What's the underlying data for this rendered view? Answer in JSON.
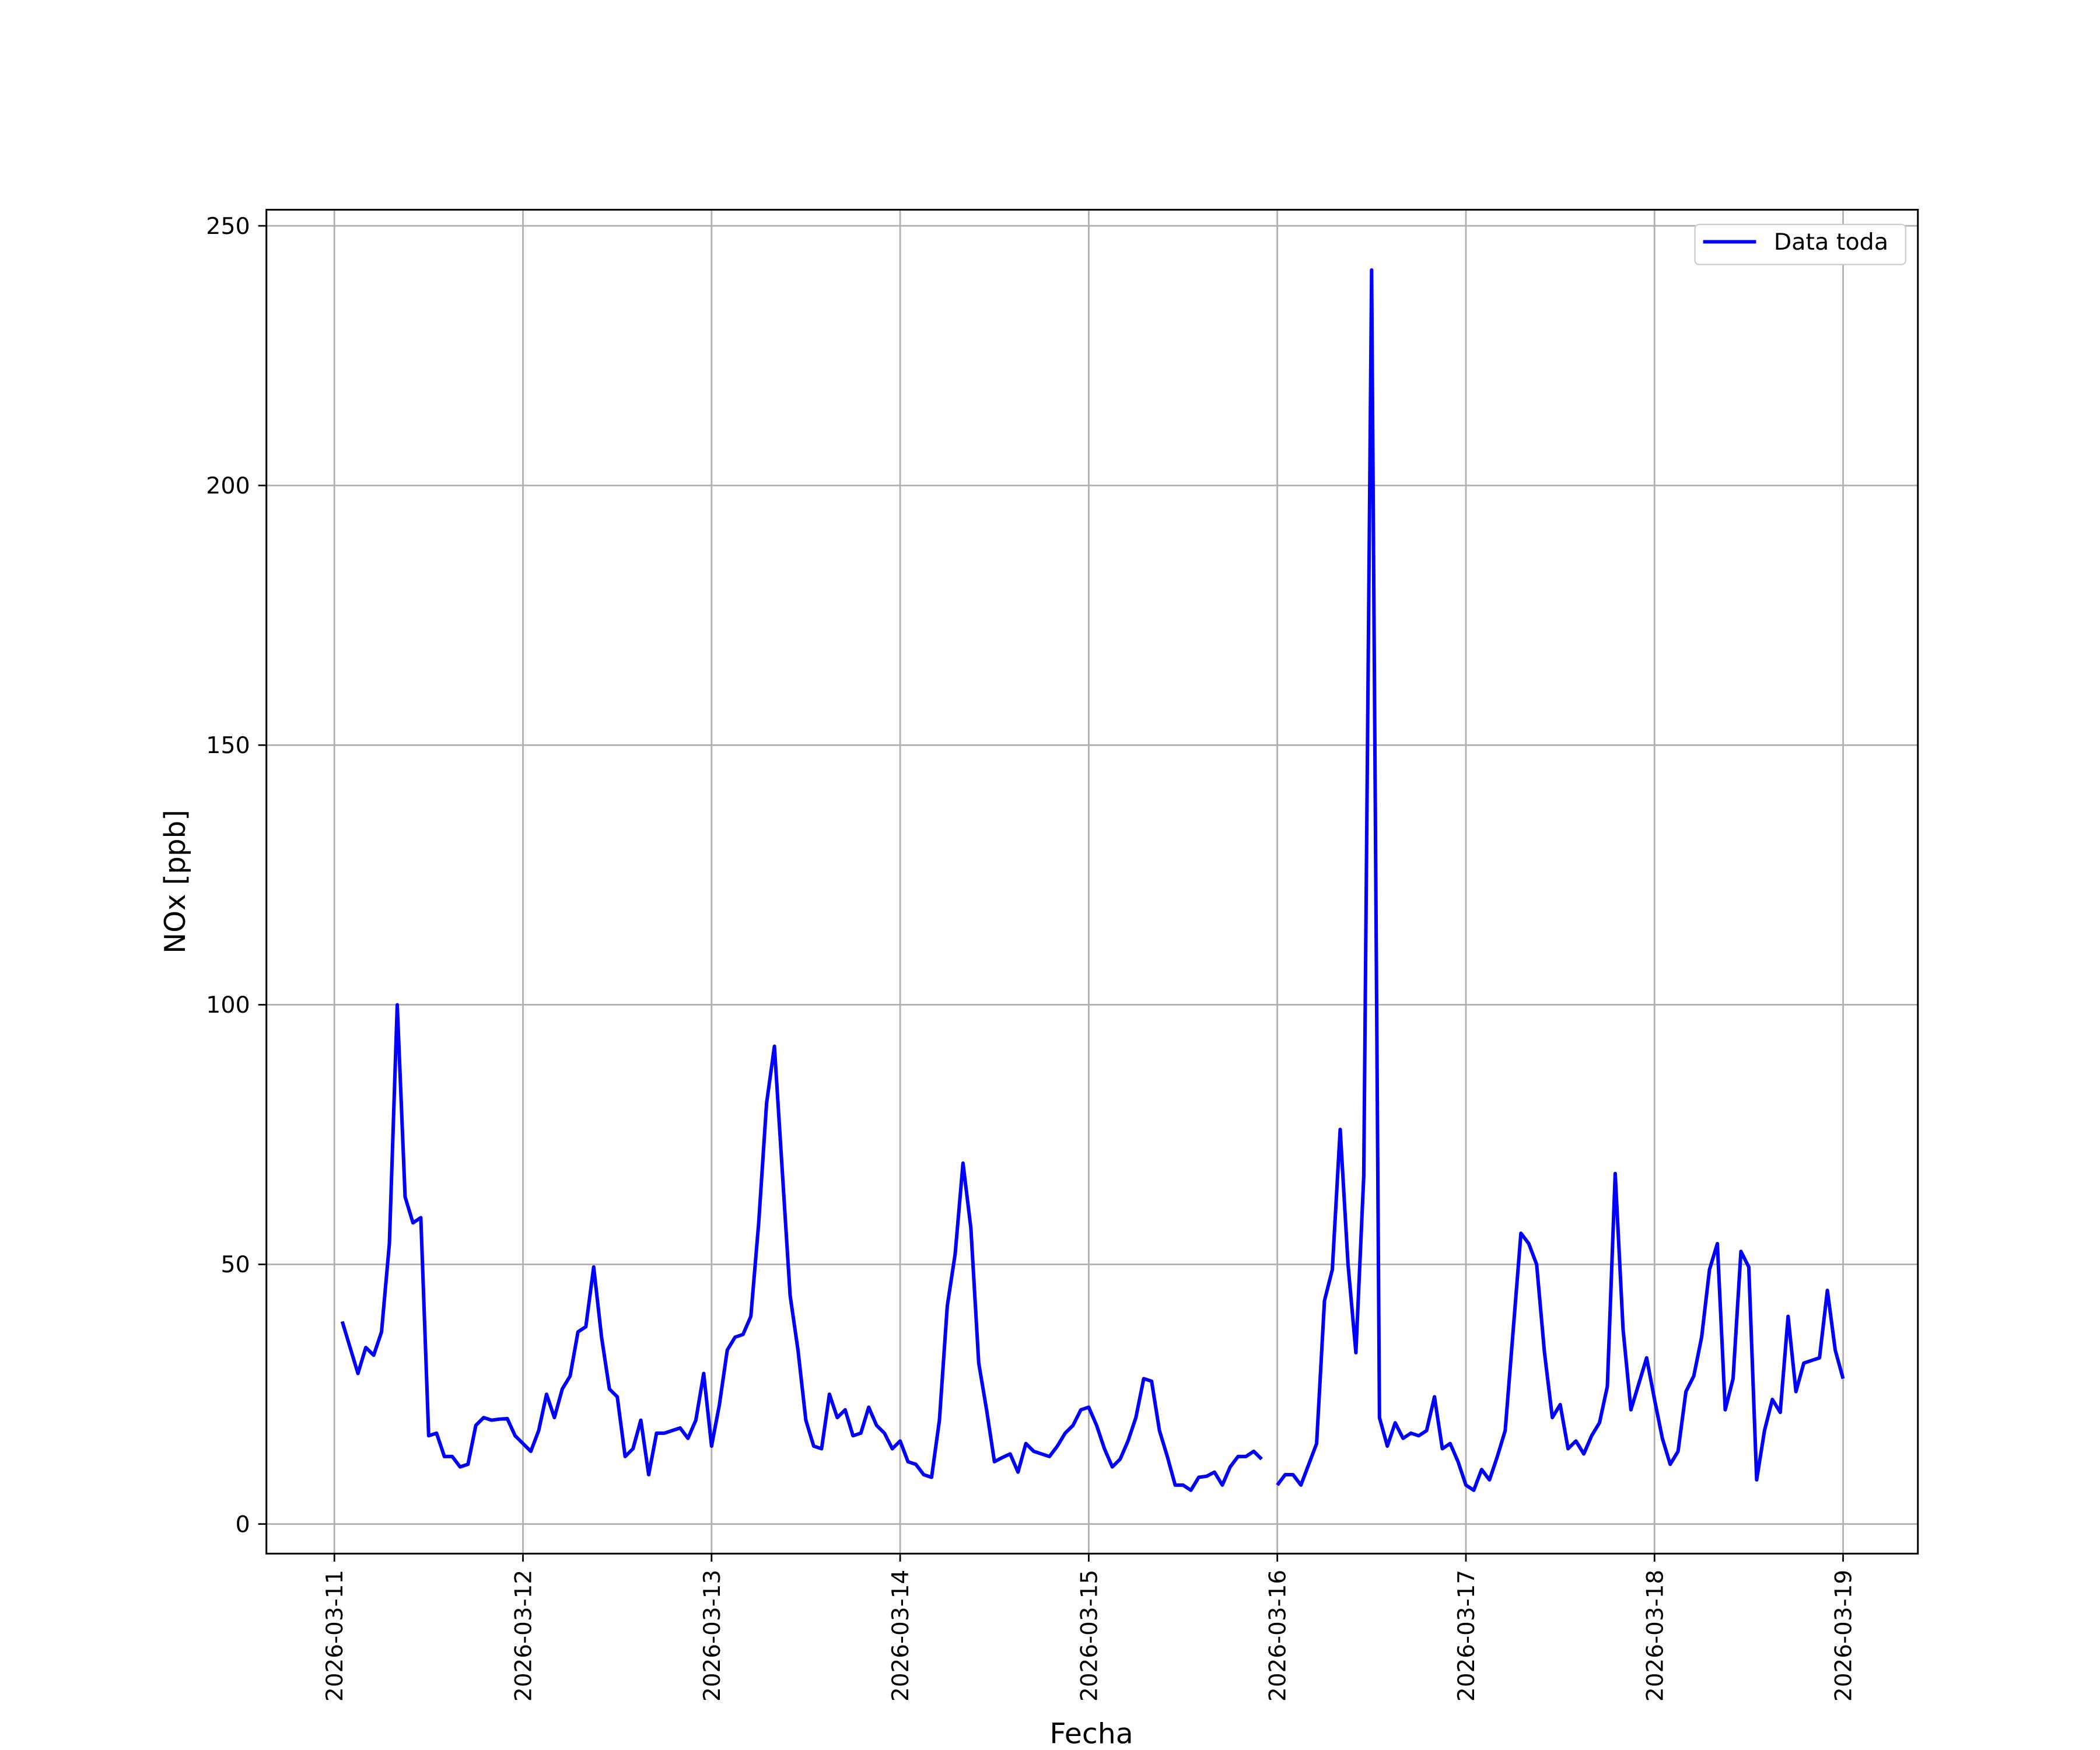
{
  "chart_data": {
    "type": "line",
    "x_label": "Fecha",
    "y_label": "NOx [ppb]",
    "xlim": [
      "2026-03-10 15:21",
      "2026-03-19 09:31"
    ],
    "ylim": [
      -5.7,
      253.1
    ],
    "xticks": [
      "2026-03-11",
      "2026-03-12",
      "2026-03-13",
      "2026-03-14",
      "2026-03-15",
      "2026-03-16",
      "2026-03-17",
      "2026-03-18",
      "2026-03-19"
    ],
    "yticks": [
      0,
      50,
      100,
      150,
      200,
      250
    ],
    "grid": true,
    "legend": "upper right",
    "x": [
      "2026-03-11 01:00",
      "2026-03-11 02:00",
      "2026-03-11 03:00",
      "2026-03-11 04:00",
      "2026-03-11 05:00",
      "2026-03-11 06:00",
      "2026-03-11 07:00",
      "2026-03-11 08:00",
      "2026-03-11 09:00",
      "2026-03-11 10:00",
      "2026-03-11 11:00",
      "2026-03-11 12:00",
      "2026-03-11 13:00",
      "2026-03-11 14:00",
      "2026-03-11 15:00",
      "2026-03-11 16:00",
      "2026-03-11 17:00",
      "2026-03-11 18:00",
      "2026-03-11 19:00",
      "2026-03-11 20:00",
      "2026-03-11 21:00",
      "2026-03-11 22:00",
      "2026-03-11 23:00",
      "2026-03-12 00:00",
      "2026-03-12 01:00",
      "2026-03-12 02:00",
      "2026-03-12 03:00",
      "2026-03-12 04:00",
      "2026-03-12 05:00",
      "2026-03-12 06:00",
      "2026-03-12 07:00",
      "2026-03-12 08:00",
      "2026-03-12 09:00",
      "2026-03-12 10:00",
      "2026-03-12 11:00",
      "2026-03-12 12:00",
      "2026-03-12 13:00",
      "2026-03-12 14:00",
      "2026-03-12 15:00",
      "2026-03-12 16:00",
      "2026-03-12 17:00",
      "2026-03-12 18:00",
      "2026-03-12 19:00",
      "2026-03-12 20:00",
      "2026-03-12 21:00",
      "2026-03-12 22:00",
      "2026-03-12 23:00",
      "2026-03-13 00:00",
      "2026-03-13 01:00",
      "2026-03-13 02:00",
      "2026-03-13 03:00",
      "2026-03-13 04:00",
      "2026-03-13 05:00",
      "2026-03-13 06:00",
      "2026-03-13 07:00",
      "2026-03-13 08:00",
      "2026-03-13 09:00",
      "2026-03-13 10:00",
      "2026-03-13 11:00",
      "2026-03-13 12:00",
      "2026-03-13 13:00",
      "2026-03-13 14:00",
      "2026-03-13 15:00",
      "2026-03-13 16:00",
      "2026-03-13 17:00",
      "2026-03-13 18:00",
      "2026-03-13 19:00",
      "2026-03-13 20:00",
      "2026-03-13 21:00",
      "2026-03-13 22:00",
      "2026-03-13 23:00",
      "2026-03-14 00:00",
      "2026-03-14 01:00",
      "2026-03-14 02:00",
      "2026-03-14 03:00",
      "2026-03-14 04:00",
      "2026-03-14 05:00",
      "2026-03-14 06:00",
      "2026-03-14 07:00",
      "2026-03-14 08:00",
      "2026-03-14 09:00",
      "2026-03-14 10:00",
      "2026-03-14 11:00",
      "2026-03-14 12:00",
      "2026-03-14 13:00",
      "2026-03-14 14:00",
      "2026-03-14 15:00",
      "2026-03-14 16:00",
      "2026-03-14 17:00",
      "2026-03-14 18:00",
      "2026-03-14 19:00",
      "2026-03-14 20:00",
      "2026-03-14 21:00",
      "2026-03-14 22:00",
      "2026-03-14 23:00",
      "2026-03-15 00:00",
      "2026-03-15 01:00",
      "2026-03-15 02:00",
      "2026-03-15 03:00",
      "2026-03-15 04:00",
      "2026-03-15 05:00",
      "2026-03-15 06:00",
      "2026-03-15 07:00",
      "2026-03-15 08:00",
      "2026-03-15 09:00",
      "2026-03-15 10:00",
      "2026-03-15 11:00",
      "2026-03-15 12:00",
      "2026-03-15 13:00",
      "2026-03-15 14:00",
      "2026-03-15 15:00",
      "2026-03-15 16:00",
      "2026-03-15 17:00",
      "2026-03-15 18:00",
      "2026-03-15 19:00",
      "2026-03-15 20:00",
      "2026-03-15 21:00",
      "2026-03-15 22:00",
      "2026-03-15 23:00",
      "2026-03-16 00:00",
      "2026-03-16 01:00",
      "2026-03-16 02:00",
      "2026-03-16 03:00",
      "2026-03-16 04:00",
      "2026-03-16 05:00",
      "2026-03-16 06:00",
      "2026-03-16 07:00",
      "2026-03-16 08:00",
      "2026-03-16 09:00",
      "2026-03-16 10:00",
      "2026-03-16 11:00",
      "2026-03-16 12:00",
      "2026-03-16 13:00",
      "2026-03-16 14:00",
      "2026-03-16 15:00",
      "2026-03-16 16:00",
      "2026-03-16 17:00",
      "2026-03-16 18:00",
      "2026-03-16 19:00",
      "2026-03-16 20:00",
      "2026-03-16 21:00",
      "2026-03-16 22:00",
      "2026-03-16 23:00",
      "2026-03-17 00:00",
      "2026-03-17 01:00",
      "2026-03-17 02:00",
      "2026-03-17 03:00",
      "2026-03-17 04:00",
      "2026-03-17 05:00",
      "2026-03-17 06:00",
      "2026-03-17 07:00",
      "2026-03-17 08:00",
      "2026-03-17 09:00",
      "2026-03-17 10:00",
      "2026-03-17 11:00",
      "2026-03-17 12:00",
      "2026-03-17 13:00",
      "2026-03-17 14:00",
      "2026-03-17 15:00",
      "2026-03-17 16:00",
      "2026-03-17 17:00",
      "2026-03-17 18:00",
      "2026-03-17 19:00",
      "2026-03-17 20:00",
      "2026-03-17 21:00",
      "2026-03-17 22:00",
      "2026-03-17 23:00",
      "2026-03-18 00:00",
      "2026-03-18 01:00",
      "2026-03-18 02:00",
      "2026-03-18 03:00",
      "2026-03-18 04:00",
      "2026-03-18 05:00",
      "2026-03-18 06:00",
      "2026-03-18 07:00",
      "2026-03-18 08:00",
      "2026-03-18 09:00",
      "2026-03-18 10:00",
      "2026-03-18 11:00",
      "2026-03-18 12:00",
      "2026-03-18 13:00",
      "2026-03-18 14:00",
      "2026-03-18 15:00",
      "2026-03-18 16:00",
      "2026-03-18 17:00",
      "2026-03-18 18:00",
      "2026-03-18 19:00",
      "2026-03-18 20:00",
      "2026-03-18 21:00",
      "2026-03-18 22:00",
      "2026-03-18 23:00",
      "2026-03-19 00:00"
    ],
    "series": [
      {
        "name": "Data toda",
        "color": "#0000ff",
        "values": [
          39,
          34,
          29,
          34,
          32.5,
          37,
          54,
          100,
          63,
          58,
          59,
          17,
          17.5,
          13,
          13,
          11,
          11.5,
          19,
          20.5,
          20,
          20.2,
          20.3,
          17,
          15.5,
          14,
          18,
          25,
          20.5,
          26,
          28.5,
          37,
          38,
          49.5,
          36,
          26,
          24.5,
          13,
          14.5,
          20,
          9.5,
          17.5,
          17.5,
          18,
          18.5,
          16.5,
          20,
          29,
          15,
          23,
          33.5,
          36,
          36.5,
          40,
          58,
          81,
          92,
          68,
          44,
          33.5,
          20,
          15,
          14.5,
          25,
          20.5,
          22,
          17,
          17.5,
          22.5,
          19,
          17.5,
          14.5,
          16,
          12,
          11.5,
          9.5,
          9,
          20,
          42,
          52,
          69.5,
          57,
          31,
          22,
          12,
          12.8,
          13.5,
          10,
          15.5,
          14,
          13.5,
          13,
          15,
          17.5,
          19,
          22,
          22.5,
          19,
          14.5,
          11,
          12.5,
          16,
          20.5,
          28,
          27.5,
          18,
          13,
          7.5,
          7.5,
          6.5,
          9,
          9.2,
          10,
          7.5,
          11,
          13,
          13,
          14,
          12.5,
          null,
          7.5,
          9.5,
          9.5,
          7.5,
          11.5,
          15.5,
          43,
          49,
          76,
          50,
          33,
          67,
          241.5,
          20.5,
          15,
          19.5,
          16.5,
          17.5,
          17,
          18,
          24.5,
          14.5,
          15.5,
          12,
          7.5,
          6.5,
          10.5,
          8.5,
          13,
          18,
          37,
          56,
          54,
          50,
          33,
          20.5,
          23,
          14.5,
          16,
          13.5,
          17,
          19.5,
          26.5,
          67.5,
          37.5,
          22,
          27,
          32,
          24,
          16.5,
          11.5,
          14,
          25.5,
          28.5,
          36,
          49,
          54,
          22,
          28,
          52.5,
          49.5,
          8.5,
          18,
          24,
          21.5,
          40,
          25.5,
          31,
          31.5,
          32,
          45,
          33.5,
          28
        ]
      }
    ]
  }
}
